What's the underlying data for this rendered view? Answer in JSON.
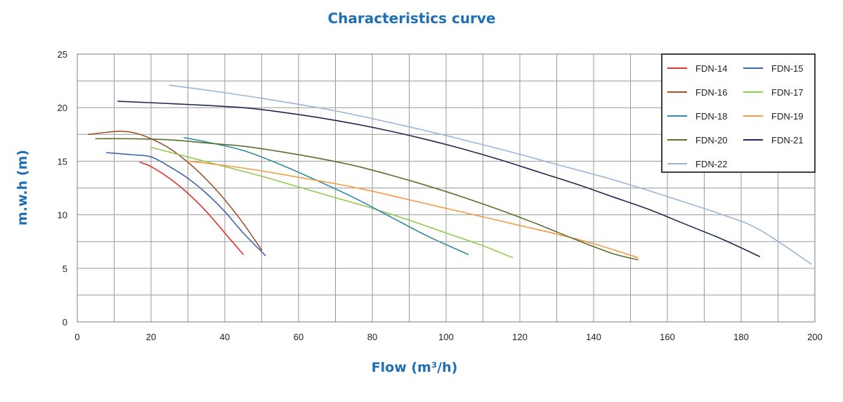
{
  "chart_data": {
    "type": "line",
    "title": "Characteristics curve",
    "xlabel": "Flow (m³/h)",
    "ylabel": "m.w.h (m)",
    "xlim": [
      0,
      200
    ],
    "ylim": [
      0,
      25
    ],
    "x_ticks": [
      0,
      20,
      40,
      60,
      80,
      100,
      120,
      140,
      160,
      180,
      200
    ],
    "y_ticks": [
      0,
      5,
      10,
      15,
      20,
      25
    ],
    "grid": true,
    "minor_grid_x_step": 10,
    "minor_grid_y_step": 2.5,
    "legend_position": "top-right",
    "series": [
      {
        "name": "FDN-14",
        "color": "#e03232",
        "points": [
          [
            17,
            14.9
          ],
          [
            20,
            14.5
          ],
          [
            25,
            13.4
          ],
          [
            30,
            12.0
          ],
          [
            35,
            10.3
          ],
          [
            40,
            8.3
          ],
          [
            45,
            6.3
          ]
        ]
      },
      {
        "name": "FDN-15",
        "color": "#3e65a8",
        "points": [
          [
            8,
            15.8
          ],
          [
            15,
            15.6
          ],
          [
            20,
            15.4
          ],
          [
            25,
            14.5
          ],
          [
            30,
            13.4
          ],
          [
            35,
            12.0
          ],
          [
            40,
            10.3
          ],
          [
            45,
            8.3
          ],
          [
            51,
            6.2
          ]
        ]
      },
      {
        "name": "FDN-16",
        "color": "#a0522d",
        "points": [
          [
            3,
            17.5
          ],
          [
            8,
            17.7
          ],
          [
            12,
            17.8
          ],
          [
            16,
            17.6
          ],
          [
            20,
            17.1
          ],
          [
            25,
            16.2
          ],
          [
            30,
            14.9
          ],
          [
            35,
            13.3
          ],
          [
            40,
            11.4
          ],
          [
            45,
            9.2
          ],
          [
            50,
            6.7
          ]
        ]
      },
      {
        "name": "FDN-17",
        "color": "#92c94f",
        "points": [
          [
            20,
            16.3
          ],
          [
            30,
            15.4
          ],
          [
            40,
            14.5
          ],
          [
            50,
            13.6
          ],
          [
            60,
            12.6
          ],
          [
            70,
            11.6
          ],
          [
            80,
            10.6
          ],
          [
            90,
            9.5
          ],
          [
            100,
            8.3
          ],
          [
            110,
            7.1
          ],
          [
            118,
            6.0
          ]
        ]
      },
      {
        "name": "FDN-18",
        "color": "#2f8aa6",
        "points": [
          [
            29,
            17.2
          ],
          [
            35,
            16.8
          ],
          [
            45,
            16.0
          ],
          [
            55,
            14.7
          ],
          [
            65,
            13.2
          ],
          [
            75,
            11.6
          ],
          [
            85,
            9.8
          ],
          [
            95,
            8.0
          ],
          [
            106,
            6.3
          ]
        ]
      },
      {
        "name": "FDN-19",
        "color": "#f39b45",
        "points": [
          [
            30,
            15.0
          ],
          [
            40,
            14.6
          ],
          [
            50,
            14.1
          ],
          [
            60,
            13.5
          ],
          [
            70,
            12.9
          ],
          [
            80,
            12.2
          ],
          [
            90,
            11.4
          ],
          [
            100,
            10.6
          ],
          [
            110,
            9.8
          ],
          [
            120,
            9.0
          ],
          [
            130,
            8.2
          ],
          [
            140,
            7.3
          ],
          [
            152,
            6.0
          ]
        ]
      },
      {
        "name": "FDN-20",
        "color": "#5a6e2f",
        "points": [
          [
            5,
            17.1
          ],
          [
            15,
            17.1
          ],
          [
            25,
            17.0
          ],
          [
            35,
            16.7
          ],
          [
            45,
            16.4
          ],
          [
            55,
            15.9
          ],
          [
            65,
            15.3
          ],
          [
            75,
            14.6
          ],
          [
            85,
            13.7
          ],
          [
            95,
            12.7
          ],
          [
            105,
            11.6
          ],
          [
            115,
            10.4
          ],
          [
            125,
            9.1
          ],
          [
            135,
            7.7
          ],
          [
            145,
            6.4
          ],
          [
            152,
            5.8
          ]
        ]
      },
      {
        "name": "FDN-21",
        "color": "#1c2a4f",
        "points": [
          [
            11,
            20.6
          ],
          [
            30,
            20.3
          ],
          [
            45,
            20.0
          ],
          [
            55,
            19.6
          ],
          [
            65,
            19.1
          ],
          [
            75,
            18.5
          ],
          [
            85,
            17.8
          ],
          [
            95,
            17.0
          ],
          [
            105,
            16.1
          ],
          [
            115,
            15.1
          ],
          [
            125,
            14.0
          ],
          [
            135,
            12.9
          ],
          [
            145,
            11.7
          ],
          [
            155,
            10.5
          ],
          [
            165,
            9.1
          ],
          [
            175,
            7.7
          ],
          [
            185,
            6.1
          ]
        ]
      },
      {
        "name": "FDN-22",
        "color": "#9ab5d9",
        "points": [
          [
            25,
            22.1
          ],
          [
            40,
            21.4
          ],
          [
            55,
            20.6
          ],
          [
            70,
            19.7
          ],
          [
            85,
            18.6
          ],
          [
            100,
            17.4
          ],
          [
            115,
            16.1
          ],
          [
            130,
            14.7
          ],
          [
            145,
            13.3
          ],
          [
            160,
            11.7
          ],
          [
            175,
            10.0
          ],
          [
            185,
            8.6
          ],
          [
            199,
            5.4
          ]
        ]
      }
    ]
  }
}
